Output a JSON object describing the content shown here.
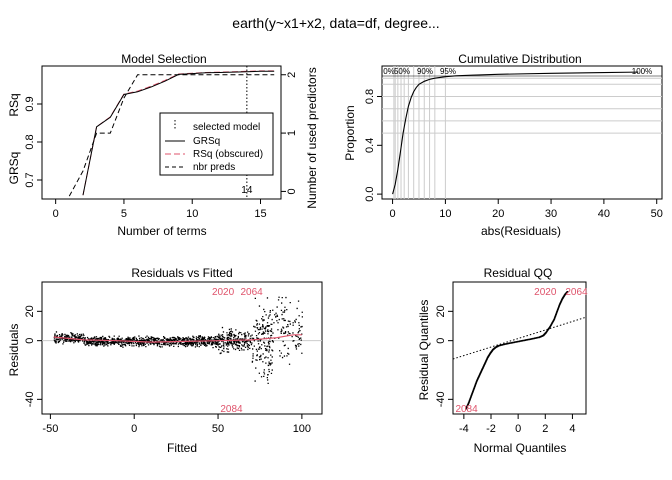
{
  "title": "earth(y~x1+x2, data=df, degree...",
  "colors": {
    "red": "#DF536B",
    "grid": "#cccccc",
    "black": "#000000"
  },
  "chart_data": [
    {
      "type": "line",
      "title": "Model Selection",
      "xlabel": "Number of terms",
      "ylabel_left": [
        "GRSq",
        "RSq"
      ],
      "ylabel_right": "Number of used predictors",
      "xlim": [
        -1,
        16.5
      ],
      "ylim": [
        0.65,
        1.0
      ],
      "y2lim": [
        -0.13,
        2.15
      ],
      "xticks": [
        "0",
        "5",
        "10",
        "15"
      ],
      "yticks": [
        "0.7",
        "0.8",
        "0.9"
      ],
      "y2ticks": [
        "0",
        "1",
        "2"
      ],
      "legend": [
        "selected model",
        "GRSq",
        "RSq (obscured)",
        "nbr preds"
      ],
      "legend_position": "right",
      "selected_model": 14,
      "selected_label": "14",
      "series": [
        {
          "name": "GRSq",
          "x": [
            2,
            3,
            4,
            5,
            6,
            7,
            8,
            9,
            10,
            11,
            12,
            13,
            14,
            15,
            16
          ],
          "values": [
            0.66,
            0.84,
            0.865,
            0.925,
            0.932,
            0.945,
            0.96,
            0.978,
            0.98,
            0.982,
            0.983,
            0.984,
            0.985,
            0.986,
            0.986
          ]
        },
        {
          "name": "RSq (obscured)",
          "x": [
            2,
            3,
            4,
            5,
            6,
            7,
            8,
            9,
            10,
            11,
            12,
            13,
            14,
            15,
            16
          ],
          "values": [
            0.66,
            0.84,
            0.866,
            0.926,
            0.934,
            0.947,
            0.962,
            0.979,
            0.981,
            0.983,
            0.984,
            0.985,
            0.986,
            0.987,
            0.987
          ]
        },
        {
          "name": "nbr preds",
          "x": [
            1,
            2,
            3,
            4,
            5,
            6,
            7,
            8,
            9,
            10,
            11,
            12,
            13,
            14,
            15,
            16
          ],
          "values": [
            -0.08,
            0.35,
            1,
            1,
            1.6,
            2,
            2,
            2,
            2,
            2,
            2,
            2,
            2,
            2,
            2,
            2
          ]
        }
      ]
    },
    {
      "type": "line",
      "title": "Cumulative Distribution",
      "xlabel": "abs(Residuals)",
      "ylabel": "Proportion",
      "xlim": [
        -2,
        51
      ],
      "ylim": [
        -0.04,
        1.05
      ],
      "xticks": [
        "0",
        "10",
        "20",
        "30",
        "40",
        "50"
      ],
      "yticks": [
        "0.0",
        "0.4",
        "0.8"
      ],
      "quantile_labels": [
        "0%",
        "50%",
        "90%",
        "95%",
        "100%"
      ],
      "series": [
        {
          "name": "",
          "x": [
            0,
            0.5,
            1,
            1.5,
            2,
            2.5,
            3,
            3.5,
            4,
            4.5,
            5,
            6,
            7,
            8,
            10,
            12,
            15,
            20,
            30,
            40,
            46.5
          ],
          "values": [
            0,
            0.08,
            0.2,
            0.35,
            0.5,
            0.62,
            0.72,
            0.79,
            0.84,
            0.875,
            0.9,
            0.925,
            0.94,
            0.95,
            0.962,
            0.97,
            0.975,
            0.982,
            0.99,
            0.996,
            1
          ]
        }
      ]
    },
    {
      "type": "scatter",
      "title": "Residuals vs Fitted",
      "xlabel": "Fitted",
      "ylabel": "Residuals",
      "xlim": [
        -55,
        112
      ],
      "ylim": [
        -50,
        40
      ],
      "xticks": [
        "-50",
        "0",
        "50",
        "100"
      ],
      "yticks": [
        "-40",
        "0",
        "20"
      ],
      "point_labels": [
        {
          "x": 53,
          "y": 34,
          "label": "2020"
        },
        {
          "x": 70,
          "y": 34,
          "label": "2064"
        },
        {
          "x": 58,
          "y": -46,
          "label": "2084"
        }
      ],
      "smooth": {
        "x": [
          -48,
          -30,
          -10,
          10,
          30,
          50,
          70,
          85,
          95,
          100
        ],
        "values": [
          2.5,
          0.5,
          0,
          -1,
          -0.5,
          0,
          0.5,
          2,
          4,
          4
        ]
      }
    },
    {
      "type": "scatter",
      "title": "Residual QQ",
      "xlabel": "Normal Quantiles",
      "ylabel": "Residual Quantiles",
      "xlim": [
        -4.8,
        5
      ],
      "ylim": [
        -50,
        40
      ],
      "xticks": [
        "-4",
        "-2",
        "0",
        "2",
        "4"
      ],
      "yticks": [
        "-40",
        "0",
        "20"
      ],
      "point_labels": [
        {
          "x": 2.0,
          "y": 34,
          "label": "2020"
        },
        {
          "x": 4.3,
          "y": 34,
          "label": "2064"
        },
        {
          "x": -3.8,
          "y": -46,
          "label": "2084"
        }
      ],
      "qq_line": {
        "x": [
          -4.8,
          5
        ],
        "values": [
          -12.5,
          16
        ]
      },
      "points": {
        "x": [
          -3.9,
          -3.7,
          -3.5,
          -3.3,
          -3.1,
          -2.9,
          -2.7,
          -2.5,
          -2.3,
          -2.1,
          -1.9,
          -1.7,
          -1.5,
          -1.0,
          -0.5,
          0,
          0.5,
          1.0,
          1.5,
          1.8,
          2.0,
          2.3,
          2.6,
          2.8,
          3.0,
          3.2,
          3.4,
          3.6
        ],
        "y": [
          -46,
          -42,
          -37,
          -32,
          -27,
          -23,
          -19,
          -15,
          -11,
          -8,
          -5.5,
          -4,
          -3,
          -1.8,
          -0.9,
          0,
          0.9,
          1.8,
          2.8,
          4,
          6,
          10,
          15,
          20,
          25,
          29,
          32,
          34
        ]
      }
    }
  ]
}
